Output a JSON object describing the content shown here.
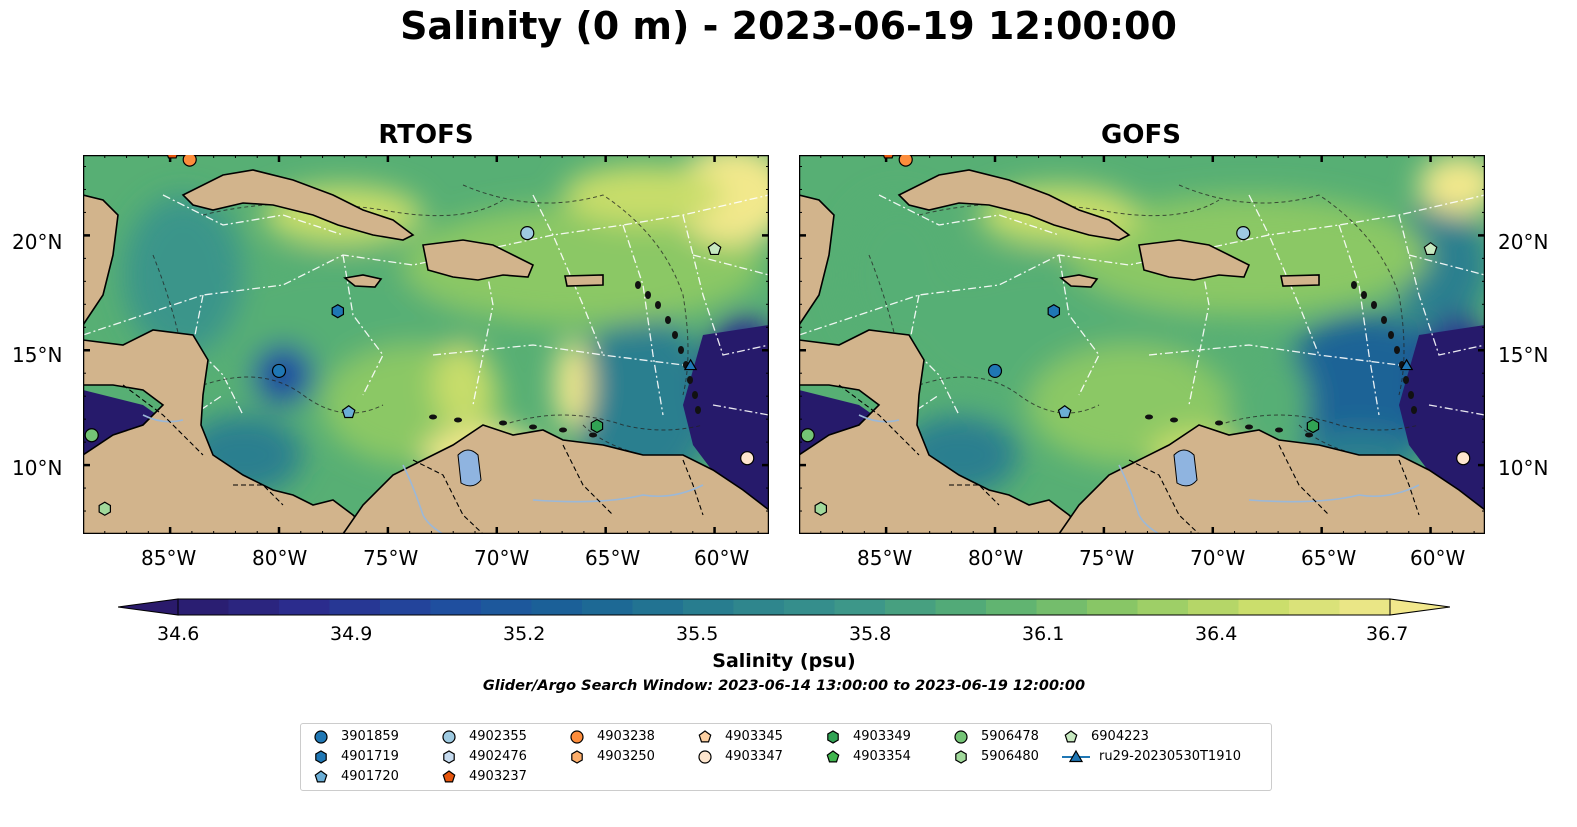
{
  "title": "Salinity (0 m) - 2023-06-19 12:00:00",
  "panels": [
    {
      "title": "RTOFS"
    },
    {
      "title": "GOFS"
    }
  ],
  "x_ticks": [
    "85°W",
    "80°W",
    "75°W",
    "70°W",
    "65°W",
    "60°W"
  ],
  "y_ticks": [
    "20°N",
    "15°N",
    "10°N"
  ],
  "colorbar": {
    "ticks": [
      "34.6",
      "34.9",
      "35.2",
      "35.5",
      "35.8",
      "36.1",
      "36.4",
      "36.7"
    ],
    "label": "Salinity (psu)",
    "range": [
      34.6,
      36.7
    ],
    "colors": [
      "#2a1a6b",
      "#2b2d8f",
      "#1f4ea0",
      "#1a6496",
      "#297f8f",
      "#3b958a",
      "#57af74",
      "#8bc865",
      "#c8dd6a",
      "#f2e88c"
    ]
  },
  "search_window": "Glider/Argo Search Window: 2023-06-14 13:00:00 to 2023-06-19 12:00:00",
  "map": {
    "land_color": "#d2b48c",
    "deep_ocean_color": "#261a6b",
    "extent_lon": [
      -89,
      -57.5
    ],
    "extent_lat": [
      7,
      23.5
    ]
  },
  "legend": [
    {
      "id": "3901859",
      "marker": "circle",
      "color": "#1f77b4"
    },
    {
      "id": "4901719",
      "marker": "hexagon",
      "color": "#1f77b4"
    },
    {
      "id": "4901720",
      "marker": "pentagon",
      "color": "#6baed6"
    },
    {
      "id": "4902355",
      "marker": "circle",
      "color": "#9ecae1"
    },
    {
      "id": "4902476",
      "marker": "hexagon",
      "color": "#c6dbef"
    },
    {
      "id": "4903237",
      "marker": "pentagon",
      "color": "#e6550d"
    },
    {
      "id": "4903238",
      "marker": "circle",
      "color": "#fd8d3c"
    },
    {
      "id": "4903250",
      "marker": "hexagon",
      "color": "#fdae6b"
    },
    {
      "id": "4903345",
      "marker": "pentagon",
      "color": "#fdd0a2"
    },
    {
      "id": "4903347",
      "marker": "circle",
      "color": "#fee6ce"
    },
    {
      "id": "4903349",
      "marker": "hexagon",
      "color": "#31a354"
    },
    {
      "id": "4903354",
      "marker": "pentagon",
      "color": "#41b64f"
    },
    {
      "id": "5906478",
      "marker": "circle",
      "color": "#74c476"
    },
    {
      "id": "5906480",
      "marker": "hexagon",
      "color": "#a1d99b"
    },
    {
      "id": "6904223",
      "marker": "pentagon",
      "color": "#c7e9c0"
    },
    {
      "id": "ru29-20230530T1910",
      "marker": "triangle-line",
      "color": "#1f77b4"
    }
  ],
  "floats": [
    {
      "id": "3901859",
      "lon": -80.0,
      "lat": 14.1
    },
    {
      "id": "4901719",
      "lon": -77.3,
      "lat": 16.7
    },
    {
      "id": "4901720",
      "lon": -76.8,
      "lat": 12.3
    },
    {
      "id": "4902355",
      "lon": -68.6,
      "lat": 20.1
    },
    {
      "id": "4903237",
      "lon": -84.9,
      "lat": 23.6
    },
    {
      "id": "4903238",
      "lon": -84.1,
      "lat": 23.3
    },
    {
      "id": "4903349",
      "lon": -65.4,
      "lat": 11.7
    },
    {
      "id": "4903347",
      "lon": -58.5,
      "lat": 10.3
    },
    {
      "id": "5906478",
      "lon": -88.6,
      "lat": 11.3
    },
    {
      "id": "5906480",
      "lon": -88.0,
      "lat": 8.1
    },
    {
      "id": "6904223",
      "lon": -60.0,
      "lat": 19.4
    },
    {
      "id": "ru29-20230530T1910",
      "lon": -61.1,
      "lat": 14.3
    }
  ]
}
